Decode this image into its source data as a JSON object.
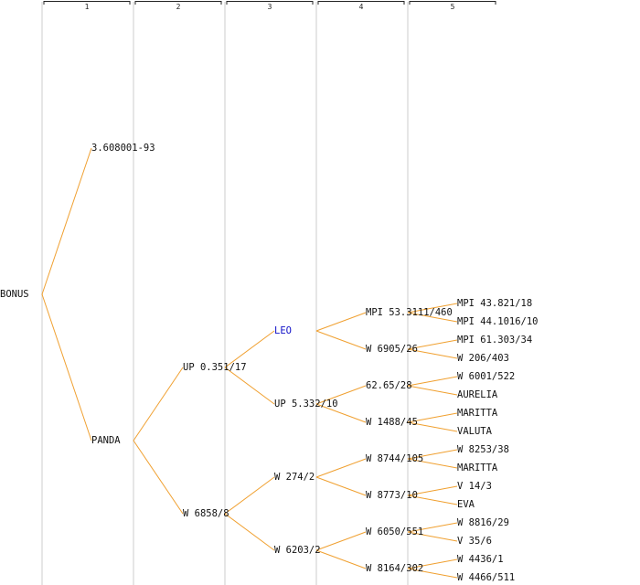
{
  "colors": {
    "edge": "#f0a030",
    "text": "#111111",
    "highlight": "#1010c8",
    "column_guide": "#e6e6e6"
  },
  "columns": [
    "1",
    "2",
    "3",
    "4",
    "5"
  ],
  "tree": {
    "label": "BONUS",
    "children": [
      {
        "label": "3.608001-93"
      },
      {
        "label": "PANDA",
        "children": [
          {
            "label": "UP 0.351/17",
            "children": [
              {
                "label": "LEO",
                "highlight": true,
                "children": [
                  {
                    "label": "MPI 53.3111/460",
                    "children": [
                      {
                        "label": "MPI 43.821/18"
                      },
                      {
                        "label": "MPI 44.1016/10"
                      }
                    ]
                  },
                  {
                    "label": "W 6905/26",
                    "children": [
                      {
                        "label": "MPI 61.303/34"
                      },
                      {
                        "label": "W 206/403"
                      }
                    ]
                  }
                ]
              },
              {
                "label": "UP 5.332/10",
                "children": [
                  {
                    "label": "62.65/28",
                    "children": [
                      {
                        "label": "W 6001/522"
                      },
                      {
                        "label": "AURELIA"
                      }
                    ]
                  },
                  {
                    "label": "W 1488/45",
                    "children": [
                      {
                        "label": "MARITTA"
                      },
                      {
                        "label": "VALUTA"
                      }
                    ]
                  }
                ]
              }
            ]
          },
          {
            "label": "W 6858/8",
            "children": [
              {
                "label": "W 274/2",
                "children": [
                  {
                    "label": "W 8744/105",
                    "children": [
                      {
                        "label": "W 8253/38"
                      },
                      {
                        "label": "MARITTA"
                      }
                    ]
                  },
                  {
                    "label": "W 8773/10",
                    "children": [
                      {
                        "label": "V 14/3"
                      },
                      {
                        "label": "EVA"
                      }
                    ]
                  }
                ]
              },
              {
                "label": "W 6203/2",
                "children": [
                  {
                    "label": "W 6050/551",
                    "children": [
                      {
                        "label": "W 8816/29"
                      },
                      {
                        "label": "V 35/6"
                      }
                    ]
                  },
                  {
                    "label": "W 8164/302",
                    "children": [
                      {
                        "label": "W 4436/1"
                      },
                      {
                        "label": "W 4466/511"
                      }
                    ]
                  }
                ]
              }
            ]
          }
        ]
      }
    ]
  }
}
